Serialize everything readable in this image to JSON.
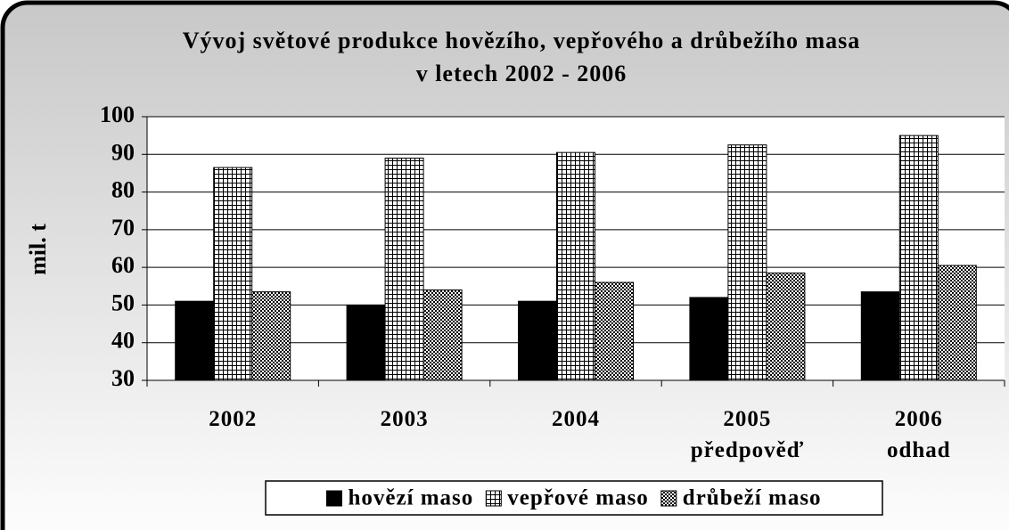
{
  "chart_data": {
    "type": "bar",
    "title": "Vývoj světové produkce hovězího, vepřového a drůbežího masa",
    "subtitle": "v letech 2002 - 2006",
    "y_label": "mil. t",
    "categories": [
      "2002",
      "2003",
      "2004",
      "2005\npředpověď",
      "2006\nodhad"
    ],
    "series": [
      {
        "name": "hovězí maso",
        "color": "#000000",
        "pattern": "solid",
        "values": [
          51,
          50,
          51,
          52,
          53.5
        ]
      },
      {
        "name": "vepřové maso",
        "color": "#000000",
        "pattern": "grid",
        "values": [
          86.5,
          89,
          90.5,
          92.5,
          95
        ]
      },
      {
        "name": "drůbeží maso",
        "color": "#000000",
        "pattern": "checker",
        "values": [
          53.5,
          54,
          56,
          58.5,
          60.5
        ]
      }
    ],
    "ylim": [
      30,
      100
    ],
    "yticks": [
      30,
      40,
      50,
      60,
      70,
      80,
      90,
      100
    ],
    "grid": true,
    "legend": "bottom"
  }
}
